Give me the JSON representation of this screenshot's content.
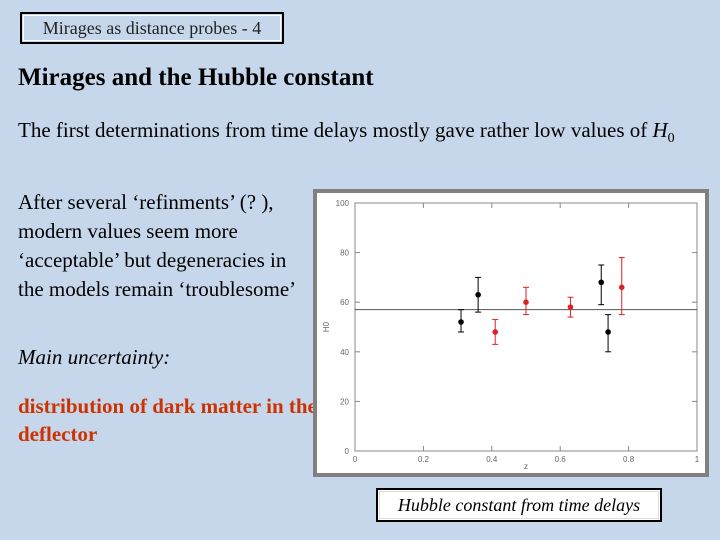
{
  "slide": {
    "header": "Mirages as distance probes - 4",
    "title": "Mirages and the Hubble constant",
    "para1_text": "The first determinations from time delays mostly gave rather low values of ",
    "para1_symbol": "H",
    "para1_subscript": "0",
    "para2": "After several ‘refinments’ (? ), modern values seem more ‘acceptable’ but degeneracies in the models remain ‘troublesome’",
    "para3": "Main uncertainty:",
    "para4": "distribution of dark matter in the deflector",
    "caption": "Hubble constant from time delays",
    "accent_color": "#cc3300",
    "background_color": "#c6d7eb"
  },
  "chart_data": {
    "type": "scatter",
    "xlabel": "z",
    "ylabel": "H0",
    "xlim": [
      0,
      1
    ],
    "ylim": [
      0,
      100
    ],
    "x_ticks": [
      0,
      0.2,
      0.4,
      0.6,
      0.8,
      1
    ],
    "x_tick_labels": [
      "0",
      "0.2",
      "0.4",
      "0.6",
      "0.8",
      "1"
    ],
    "y_ticks": [
      0,
      20,
      40,
      60,
      80,
      100
    ],
    "y_tick_labels": [
      "0",
      "20",
      "40",
      "60",
      "80",
      "100"
    ],
    "reference_line": 57,
    "grid": false,
    "series": [
      {
        "color": "#000000",
        "points": [
          {
            "x": 0.31,
            "y": 52,
            "err_low": 48,
            "err_high": 57
          },
          {
            "x": 0.36,
            "y": 63,
            "err_low": 56,
            "err_high": 70
          },
          {
            "x": 0.72,
            "y": 68,
            "err_low": 59,
            "err_high": 75
          },
          {
            "x": 0.74,
            "y": 48,
            "err_low": 40,
            "err_high": 55
          }
        ]
      },
      {
        "color": "#dd2222",
        "points": [
          {
            "x": 0.41,
            "y": 48,
            "err_low": 43,
            "err_high": 53
          },
          {
            "x": 0.5,
            "y": 60,
            "err_low": 55,
            "err_high": 66
          },
          {
            "x": 0.63,
            "y": 58,
            "err_low": 54,
            "err_high": 62
          },
          {
            "x": 0.78,
            "y": 66,
            "err_low": 55,
            "err_high": 78
          }
        ]
      }
    ]
  }
}
